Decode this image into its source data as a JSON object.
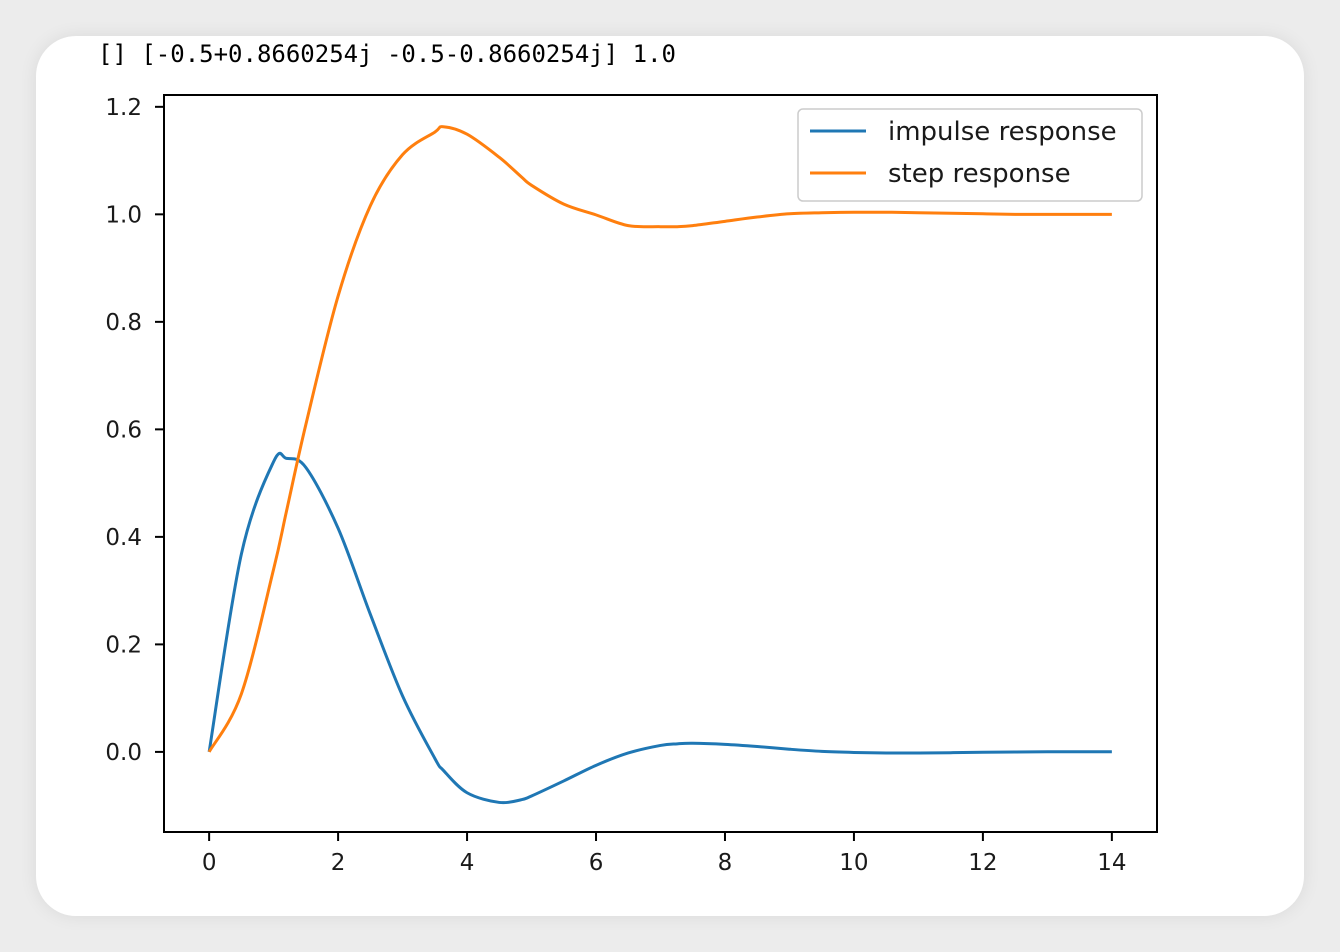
{
  "output": {
    "text": "[] [-0.5+0.8660254j -0.5-0.8660254j] 1.0"
  },
  "chart_data": {
    "type": "line",
    "xlim": [
      -0.7,
      14.7
    ],
    "ylim": [
      -0.149,
      1.222
    ],
    "xticks": [
      0,
      2,
      4,
      6,
      8,
      10,
      12,
      14
    ],
    "yticks": [
      0.0,
      0.2,
      0.4,
      0.6,
      0.8,
      1.0,
      1.2
    ],
    "xtick_labels": [
      "0",
      "2",
      "4",
      "6",
      "8",
      "10",
      "12",
      "14"
    ],
    "ytick_labels": [
      "0.0",
      "0.2",
      "0.4",
      "0.6",
      "0.8",
      "1.0",
      "1.2"
    ],
    "grid": false,
    "legend_position": "top-right",
    "x": [
      0,
      0.5,
      1.0,
      1.2,
      1.5,
      2.0,
      2.5,
      3.0,
      3.5,
      3.63,
      4.0,
      4.5,
      4.84,
      5.0,
      5.5,
      6.0,
      6.5,
      7.0,
      7.26,
      7.5,
      8.0,
      8.5,
      9.0,
      9.5,
      10.0,
      10.5,
      11.0,
      11.5,
      12.0,
      12.5,
      13.0,
      13.5,
      14.0
    ],
    "series": [
      {
        "name": "impulse response",
        "color": "#1f77b4",
        "values": [
          0,
          0.368,
          0.54,
          0.546,
          0.529,
          0.416,
          0.256,
          0.104,
          -0.012,
          -0.034,
          -0.076,
          -0.094,
          -0.089,
          -0.082,
          -0.054,
          -0.025,
          -0.002,
          0.012,
          0.015,
          0.016,
          0.014,
          0.01,
          0.005,
          0.001,
          -0.001,
          -0.002,
          -0.002,
          -0.0015,
          -0.0007,
          -0.0001,
          0.0002,
          0.0003,
          0.0002
        ]
      },
      {
        "name": "step response",
        "color": "#ff7f0e",
        "values": [
          0,
          0.108,
          0.34,
          0.448,
          0.609,
          0.848,
          1.016,
          1.111,
          1.153,
          1.163,
          1.149,
          1.106,
          1.07,
          1.054,
          1.019,
          0.999,
          0.979,
          0.977,
          0.977,
          0.979,
          0.987,
          0.995,
          1.001,
          1.003,
          1.004,
          1.004,
          1.003,
          1.002,
          1.001,
          1.0,
          1.0,
          1.0,
          1.0
        ]
      }
    ]
  }
}
